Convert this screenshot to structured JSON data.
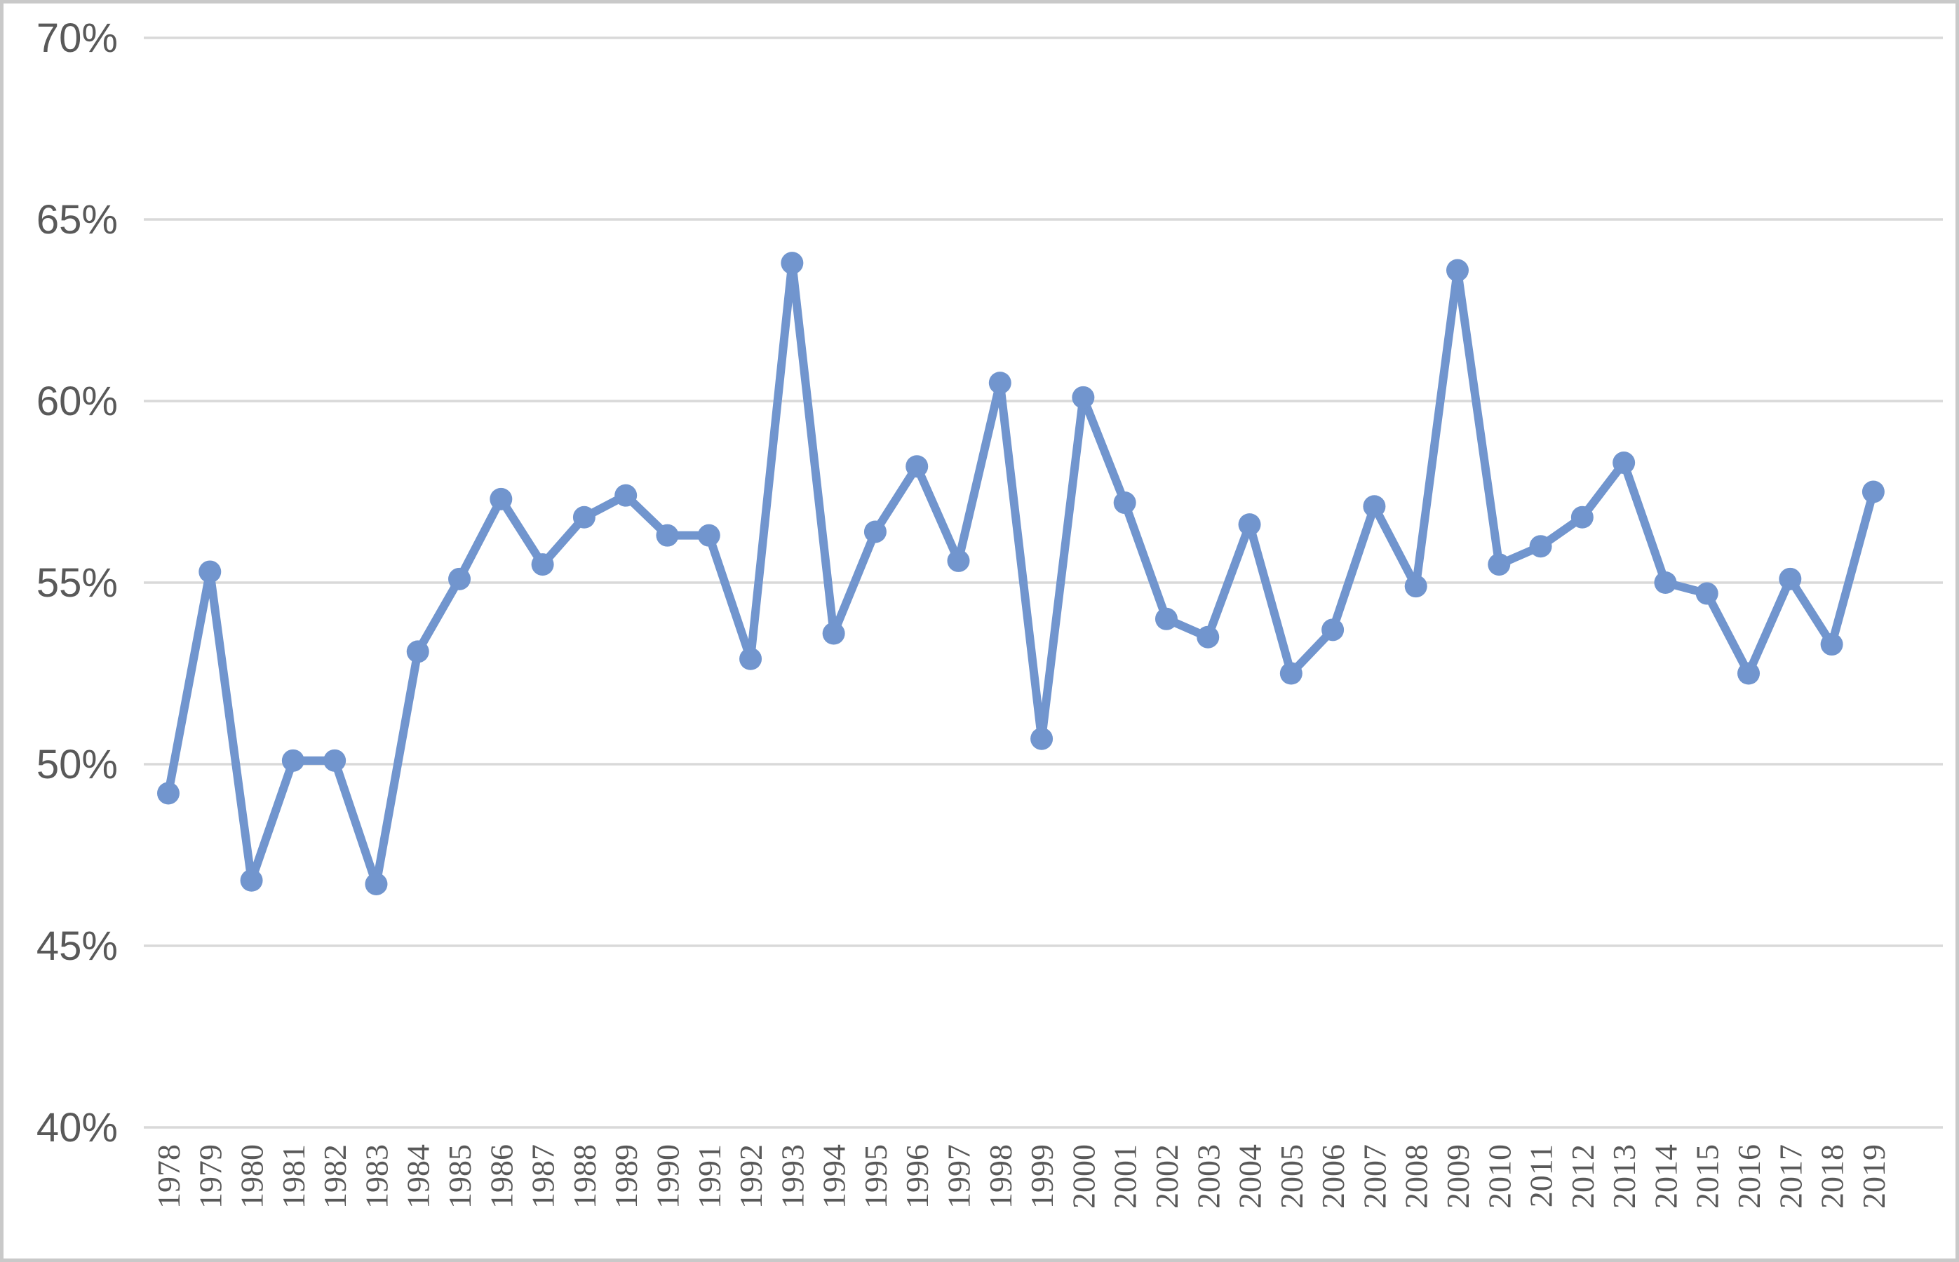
{
  "chart_data": {
    "type": "line",
    "title": "",
    "xlabel": "",
    "ylabel": "",
    "x": [
      "1978",
      "1979",
      "1980",
      "1981",
      "1982",
      "1983",
      "1984",
      "1985",
      "1986",
      "1987",
      "1988",
      "1989",
      "1990",
      "1991",
      "1992",
      "1993",
      "1994",
      "1995",
      "1996",
      "1997",
      "1998",
      "1999",
      "2000",
      "2001",
      "2002",
      "2003",
      "2004",
      "2005",
      "2006",
      "2007",
      "2008",
      "2009",
      "2010",
      "2011",
      "2012",
      "2013",
      "2014",
      "2015",
      "2016",
      "2017",
      "2018",
      "2019"
    ],
    "series": [
      {
        "name": "",
        "values": [
          49.2,
          55.3,
          46.8,
          50.1,
          50.1,
          46.7,
          53.1,
          55.1,
          57.3,
          55.5,
          56.8,
          57.4,
          56.3,
          56.3,
          52.9,
          63.8,
          53.6,
          56.4,
          58.2,
          55.6,
          60.5,
          50.7,
          60.1,
          57.2,
          54.0,
          53.5,
          56.6,
          52.5,
          53.7,
          57.1,
          54.9,
          63.6,
          55.5,
          56.0,
          56.8,
          58.3,
          55.0,
          54.7,
          52.5,
          55.1,
          53.3,
          57.5
        ]
      }
    ],
    "ylim": [
      40,
      70
    ],
    "yticks": [
      40,
      45,
      50,
      55,
      60,
      65,
      70
    ],
    "ytick_labels": [
      "40%",
      "45%",
      "50%",
      "55%",
      "60%",
      "65%",
      "70%"
    ],
    "grid": true,
    "legend_position": "none",
    "marker": "circle"
  },
  "colors": {
    "line": "#7195CE",
    "marker": "#7195CE",
    "gridline": "#D9D9D9",
    "tick_text": "#595959",
    "frame_border": "#C9C9C9",
    "background": "#FFFFFF"
  }
}
